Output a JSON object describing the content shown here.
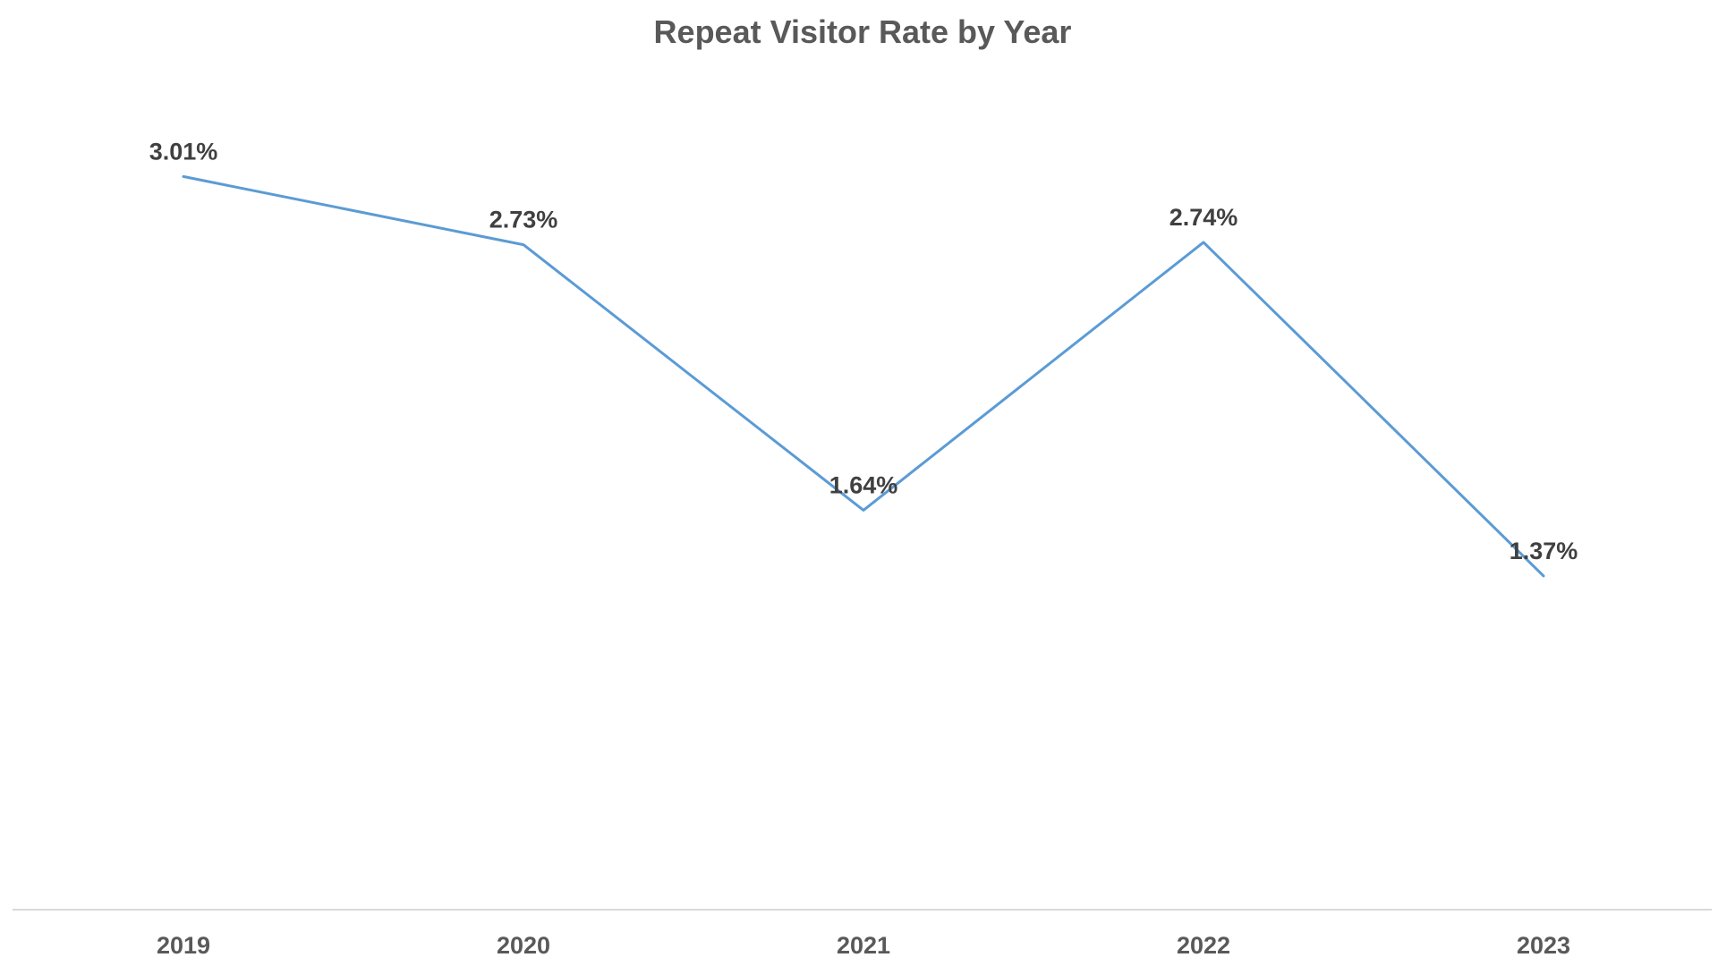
{
  "chart_data": {
    "type": "line",
    "title": "Repeat Visitor Rate by Year",
    "xlabel": "",
    "ylabel": "",
    "categories": [
      "2019",
      "2020",
      "2021",
      "2022",
      "2023"
    ],
    "series": [
      {
        "values": [
          3.01,
          2.73,
          1.64,
          2.74,
          1.37
        ],
        "labels": [
          "3.01%",
          "2.73%",
          "1.64%",
          "2.74%",
          "1.37%"
        ],
        "color": "#5b9bd5"
      }
    ],
    "ylim": [
      0,
      3.75
    ],
    "grid": false,
    "legend": "none"
  }
}
